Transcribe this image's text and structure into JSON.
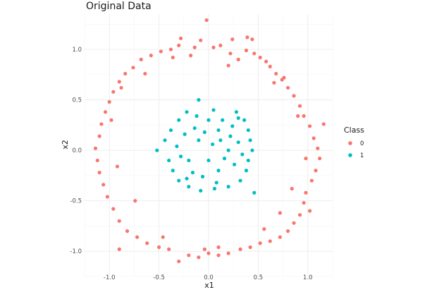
{
  "chart_data": {
    "type": "scatter",
    "title": "Original Data",
    "xlabel": "x1",
    "ylabel": "x2",
    "xlim": [
      -1.25,
      1.25
    ],
    "ylim": [
      -1.25,
      1.35
    ],
    "x_ticks": [
      -1.0,
      -0.5,
      0.0,
      0.5,
      1.0
    ],
    "x_tick_labels": [
      "-1.0",
      "-0.5",
      "0.0",
      "0.5",
      "1.0"
    ],
    "y_ticks": [
      -1.0,
      -0.5,
      0.0,
      0.5,
      1.0
    ],
    "y_tick_labels": [
      "-1.0",
      "-0.5",
      "0.0",
      "0.5",
      "1.0"
    ],
    "grid": true,
    "legend": {
      "title": "Class",
      "position": "right",
      "entries": [
        {
          "label": "0",
          "color": "#F8766D"
        },
        {
          "label": "1",
          "color": "#00BFC4"
        }
      ]
    },
    "series": [
      {
        "name": "0",
        "color": "#F8766D",
        "points": [
          [
            -0.02,
            1.29
          ],
          [
            -0.28,
            1.11
          ],
          [
            0.39,
            1.12
          ],
          [
            0.44,
            1.1
          ],
          [
            0.24,
            1.1
          ],
          [
            -0.08,
            1.09
          ],
          [
            0.12,
            1.04
          ],
          [
            0.05,
            1.02
          ],
          [
            -0.14,
            1.02
          ],
          [
            0.22,
            0.96
          ],
          [
            0.38,
            0.99
          ],
          [
            0.46,
            0.96
          ],
          [
            0.52,
            0.92
          ],
          [
            0.58,
            0.88
          ],
          [
            0.62,
            0.83
          ],
          [
            0.68,
            0.76
          ],
          [
            0.74,
            0.7
          ],
          [
            0.8,
            0.62
          ],
          [
            0.86,
            0.54
          ],
          [
            0.92,
            0.44
          ],
          [
            0.96,
            0.34
          ],
          [
            1.02,
            0.24
          ],
          [
            1.06,
            0.12
          ],
          [
            1.1,
            0.02
          ],
          [
            1.12,
            -0.08
          ],
          [
            1.08,
            -0.2
          ],
          [
            1.04,
            -0.3
          ],
          [
            0.98,
            -0.42
          ],
          [
            0.96,
            -0.52
          ],
          [
            0.92,
            -0.64
          ],
          [
            0.86,
            -0.72
          ],
          [
            0.8,
            -0.8
          ],
          [
            0.72,
            -0.86
          ],
          [
            0.62,
            -0.9
          ],
          [
            0.52,
            -0.92
          ],
          [
            0.42,
            -0.96
          ],
          [
            0.32,
            -0.98
          ],
          [
            0.2,
            -1.02
          ],
          [
            0.1,
            -1.04
          ],
          [
            0.0,
            -1.02
          ],
          [
            -0.1,
            -1.06
          ],
          [
            -0.2,
            -1.04
          ],
          [
            -0.3,
            -1.1
          ],
          [
            -0.4,
            -0.98
          ],
          [
            -0.5,
            -0.96
          ],
          [
            -0.62,
            -0.92
          ],
          [
            -0.72,
            -0.86
          ],
          [
            -0.82,
            -0.8
          ],
          [
            -0.9,
            -0.7
          ],
          [
            -0.96,
            -0.58
          ],
          [
            -1.02,
            -0.46
          ],
          [
            -1.06,
            -0.34
          ],
          [
            -1.1,
            -0.22
          ],
          [
            -1.12,
            -0.1
          ],
          [
            -1.14,
            0.02
          ],
          [
            -1.1,
            0.14
          ],
          [
            -1.08,
            0.26
          ],
          [
            -1.04,
            0.38
          ],
          [
            -1.0,
            0.48
          ],
          [
            -0.96,
            0.58
          ],
          [
            -0.9,
            0.68
          ],
          [
            -0.84,
            0.76
          ],
          [
            -0.76,
            0.82
          ],
          [
            -0.68,
            0.9
          ],
          [
            -0.58,
            0.94
          ],
          [
            -0.48,
            0.98
          ],
          [
            -0.38,
            1.0
          ],
          [
            -0.3,
            1.04
          ],
          [
            -0.18,
            0.94
          ],
          [
            0.3,
            0.9
          ],
          [
            0.66,
            0.67
          ],
          [
            0.76,
            0.72
          ],
          [
            0.9,
            0.34
          ],
          [
            0.98,
            -0.08
          ],
          [
            1.02,
            -0.6
          ],
          [
            0.72,
            -0.62
          ],
          [
            0.56,
            -0.78
          ],
          [
            -0.46,
            -0.86
          ],
          [
            -0.74,
            -0.5
          ],
          [
            -0.92,
            -0.16
          ],
          [
            -0.98,
            0.3
          ],
          [
            -0.64,
            0.76
          ],
          [
            -0.88,
            0.62
          ],
          [
            0.2,
            0.84
          ],
          [
            -0.36,
            0.92
          ],
          [
            0.84,
            -0.38
          ],
          [
            0.1,
            -0.96
          ],
          [
            -0.04,
            -0.98
          ],
          [
            -0.9,
            -0.98
          ],
          [
            1.16,
            0.26
          ]
        ]
      },
      {
        "name": "1",
        "color": "#00BFC4",
        "points": [
          [
            -0.1,
            0.5
          ],
          [
            0.05,
            0.4
          ],
          [
            -0.22,
            0.38
          ],
          [
            0.28,
            0.38
          ],
          [
            -0.3,
            0.3
          ],
          [
            0.36,
            0.3
          ],
          [
            -0.38,
            0.2
          ],
          [
            0.4,
            0.2
          ],
          [
            -0.44,
            0.1
          ],
          [
            0.42,
            0.1
          ],
          [
            -0.52,
            0.0
          ],
          [
            0.44,
            0.0
          ],
          [
            -0.4,
            -0.1
          ],
          [
            0.4,
            -0.1
          ],
          [
            -0.36,
            -0.2
          ],
          [
            0.38,
            -0.2
          ],
          [
            -0.3,
            -0.3
          ],
          [
            0.32,
            -0.3
          ],
          [
            -0.2,
            -0.36
          ],
          [
            0.2,
            -0.36
          ],
          [
            -0.08,
            -0.4
          ],
          [
            0.06,
            -0.38
          ],
          [
            0.46,
            -0.42
          ],
          [
            0.0,
            0.3
          ],
          [
            0.1,
            0.2
          ],
          [
            -0.1,
            0.1
          ],
          [
            0.2,
            0.0
          ],
          [
            -0.2,
            -0.1
          ],
          [
            0.1,
            -0.2
          ],
          [
            -0.06,
            -0.26
          ],
          [
            0.24,
            0.24
          ],
          [
            -0.24,
            0.16
          ],
          [
            0.16,
            -0.08
          ],
          [
            -0.14,
            0.22
          ],
          [
            0.3,
            0.08
          ],
          [
            -0.28,
            -0.06
          ],
          [
            0.04,
            0.06
          ],
          [
            0.0,
            -0.1
          ],
          [
            0.14,
            0.3
          ],
          [
            -0.16,
            -0.22
          ],
          [
            0.26,
            -0.14
          ],
          [
            -0.32,
            0.04
          ],
          [
            0.34,
            -0.04
          ],
          [
            -0.12,
            0.34
          ],
          [
            0.08,
            -0.32
          ],
          [
            0.22,
            0.14
          ],
          [
            -0.04,
            0.18
          ],
          [
            0.12,
            0.1
          ],
          [
            -0.22,
            -0.28
          ],
          [
            0.3,
            0.32
          ]
        ]
      }
    ]
  }
}
